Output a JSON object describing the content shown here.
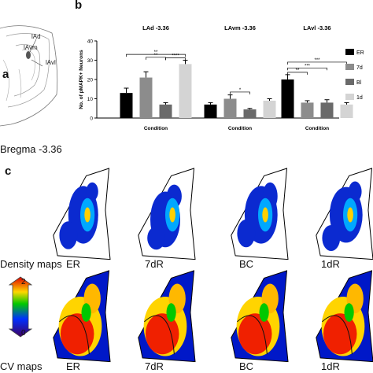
{
  "panels": {
    "a": "a",
    "b": "b",
    "c": "c"
  },
  "atlas": {
    "labels": [
      "lAd",
      "lAvm",
      "lAvl"
    ]
  },
  "bregma_label": "Bregma -3.36",
  "chart_data": {
    "type": "bar",
    "ylabel": "No. of pMAPK+ Neurons",
    "ylim": [
      0,
      40
    ],
    "yticks": [
      0,
      10,
      20,
      30,
      40
    ],
    "legend_placement": "right",
    "series": [
      {
        "name": "ER",
        "color": "#000000"
      },
      {
        "name": "7d",
        "color": "#8c8c8c"
      },
      {
        "name": "Bl",
        "color": "#6a6a6a"
      },
      {
        "name": "1d",
        "color": "#d4d4d4"
      }
    ],
    "groups": [
      {
        "title": "LAd -3.36",
        "xlabel": "Condition",
        "values": [
          13,
          21,
          7,
          28
        ],
        "errors": [
          2.5,
          3,
          1,
          2
        ],
        "significance": [
          {
            "from": 0,
            "to": 3,
            "label": "**"
          },
          {
            "from": 1,
            "to": 2,
            "label": "**"
          },
          {
            "from": 2,
            "to": 3,
            "label": "****"
          }
        ]
      },
      {
        "title": "LAvm -3.36",
        "xlabel": "Condition",
        "values": [
          7,
          10,
          4.5,
          9
        ],
        "errors": [
          1,
          2,
          0.5,
          1
        ],
        "significance": [
          {
            "from": 1,
            "to": 2,
            "label": "*"
          }
        ]
      },
      {
        "title": "LAvl -3.36",
        "xlabel": "Condition",
        "values": [
          20,
          8,
          8,
          7
        ],
        "errors": [
          2.5,
          1,
          1.5,
          1
        ],
        "significance": [
          {
            "from": 0,
            "to": 3,
            "label": "***"
          },
          {
            "from": 0,
            "to": 2,
            "label": "***"
          },
          {
            "from": 0,
            "to": 1,
            "label": "**"
          }
        ]
      }
    ]
  },
  "maps": {
    "row_labels": [
      "Density maps",
      "CV maps"
    ],
    "conditions": [
      "ER",
      "7dR",
      "BC",
      "1dR"
    ],
    "scale_max": "2",
    "scale_min": "0"
  }
}
